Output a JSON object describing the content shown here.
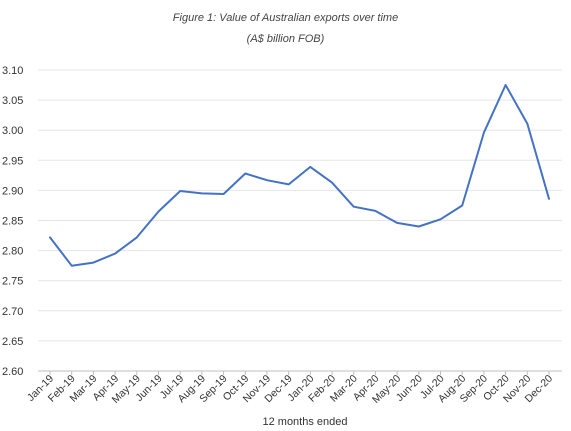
{
  "chart_data": {
    "type": "line",
    "title": "Figure 1: Value of Australian exports over time",
    "subtitle": "(A$ billion FOB)",
    "xlabel": "12 months ended",
    "ylabel": "",
    "ylim": [
      2.6,
      3.1
    ],
    "yticks": [
      "2.60",
      "2.65",
      "2.70",
      "2.75",
      "2.80",
      "2.85",
      "2.90",
      "2.95",
      "3.00",
      "3.05",
      "3.10"
    ],
    "grid": true,
    "legend": "none",
    "series_color": "#4472C4",
    "categories": [
      "Jan-19",
      "Feb-19",
      "Mar-19",
      "Apr-19",
      "May-19",
      "Jun-19",
      "Jul-19",
      "Aug-19",
      "Sep-19",
      "Oct-19",
      "Nov-19",
      "Dec-19",
      "Jan-20",
      "Feb-20",
      "Mar-20",
      "Apr-20",
      "May-20",
      "Jun-20",
      "Jul-20",
      "Aug-20",
      "Sep-20",
      "Oct-20",
      "Nov-20",
      "Dec-20"
    ],
    "series": [
      {
        "values": [
          2.822,
          2.775,
          2.78,
          2.795,
          2.822,
          2.865,
          2.899,
          2.895,
          2.894,
          2.928,
          2.917,
          2.91,
          2.939,
          2.913,
          2.873,
          2.866,
          2.846,
          2.84,
          2.852,
          2.875,
          2.996,
          3.075,
          3.011,
          2.886
        ]
      }
    ]
  }
}
